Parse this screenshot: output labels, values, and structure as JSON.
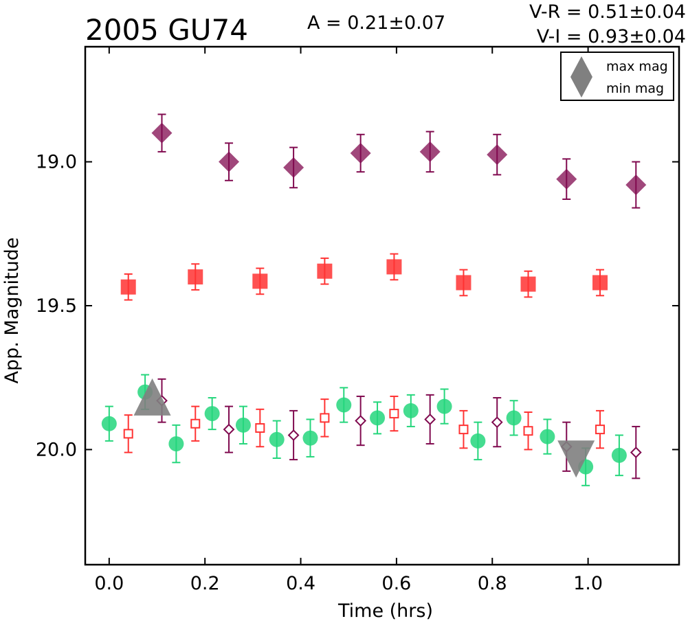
{
  "chart_data": {
    "type": "scatter",
    "title": "2005 GU74",
    "amplitude_label": "A  = 0.21±0.07",
    "color_labels": [
      "V-R = 0.51±0.04",
      "V-I  = 0.93±0.04"
    ],
    "xlabel": "Time (hrs)",
    "ylabel": "App. Magnitude",
    "xlim": [
      -0.05,
      1.19
    ],
    "ylim": [
      20.4,
      18.6
    ],
    "y_inverted": true,
    "x_ticks": [
      "0.0",
      "0.2",
      "0.4",
      "0.6",
      "0.8",
      "1.0"
    ],
    "y_ticks": [
      "19.0",
      "19.5",
      "20.0"
    ],
    "grid": false,
    "legend": {
      "position": "top-right",
      "entries": [
        {
          "label": "max mag",
          "marker": "triangle-up",
          "color": "#808080"
        },
        {
          "label": "min mag",
          "marker": "triangle-down",
          "color": "#808080"
        }
      ]
    },
    "colors": {
      "purple": "#800a4f",
      "red": "#ff3333",
      "green": "#25d67c",
      "gray": "#808080"
    },
    "series": [
      {
        "marker": "diamond-filled",
        "color": "#800a4f",
        "x": [
          0.11,
          0.25,
          0.385,
          0.525,
          0.67,
          0.81,
          0.955,
          1.1
        ],
        "y": [
          18.9,
          19.0,
          19.02,
          18.97,
          18.965,
          18.975,
          19.06,
          19.08
        ],
        "err": [
          0.065,
          0.065,
          0.07,
          0.065,
          0.07,
          0.07,
          0.07,
          0.08
        ]
      },
      {
        "marker": "square-filled",
        "color": "#ff3333",
        "x": [
          0.04,
          0.18,
          0.315,
          0.45,
          0.595,
          0.74,
          0.875,
          1.025
        ],
        "y": [
          19.435,
          19.4,
          19.415,
          19.38,
          19.365,
          19.42,
          19.425,
          19.42
        ],
        "err": [
          0.045,
          0.045,
          0.045,
          0.045,
          0.045,
          0.045,
          0.045,
          0.045
        ]
      },
      {
        "marker": "circle-filled",
        "color": "#25d67c",
        "x": [
          0.0,
          0.075,
          0.14,
          0.215,
          0.28,
          0.35,
          0.42,
          0.49,
          0.56,
          0.63,
          0.7,
          0.77,
          0.845,
          0.915,
          0.995,
          1.065
        ],
        "y": [
          19.91,
          19.8,
          19.98,
          19.875,
          19.915,
          19.965,
          19.96,
          19.845,
          19.89,
          19.865,
          19.85,
          19.97,
          19.89,
          19.955,
          20.06,
          20.02
        ],
        "err": [
          0.06,
          0.06,
          0.065,
          0.055,
          0.065,
          0.065,
          0.065,
          0.06,
          0.055,
          0.055,
          0.06,
          0.065,
          0.06,
          0.06,
          0.065,
          0.07
        ]
      },
      {
        "marker": "square-open",
        "color": "#ff3333",
        "x": [
          0.04,
          0.18,
          0.315,
          0.45,
          0.595,
          0.74,
          0.875,
          1.025
        ],
        "y": [
          19.945,
          19.91,
          19.925,
          19.89,
          19.875,
          19.93,
          19.935,
          19.93
        ],
        "err": [
          0.065,
          0.06,
          0.065,
          0.065,
          0.06,
          0.065,
          0.065,
          0.065
        ]
      },
      {
        "marker": "diamond-open",
        "color": "#800a4f",
        "x": [
          0.11,
          0.25,
          0.385,
          0.525,
          0.67,
          0.81,
          0.955,
          1.1
        ],
        "y": [
          19.83,
          19.93,
          19.95,
          19.9,
          19.895,
          19.905,
          19.99,
          20.01
        ],
        "err": [
          0.075,
          0.08,
          0.085,
          0.085,
          0.085,
          0.085,
          0.085,
          0.09
        ]
      }
    ],
    "extrema": [
      {
        "label": "max mag",
        "marker": "triangle-up",
        "x": 0.09,
        "y": 19.83
      },
      {
        "label": "min mag",
        "marker": "triangle-down",
        "x": 0.975,
        "y": 20.02
      }
    ]
  }
}
